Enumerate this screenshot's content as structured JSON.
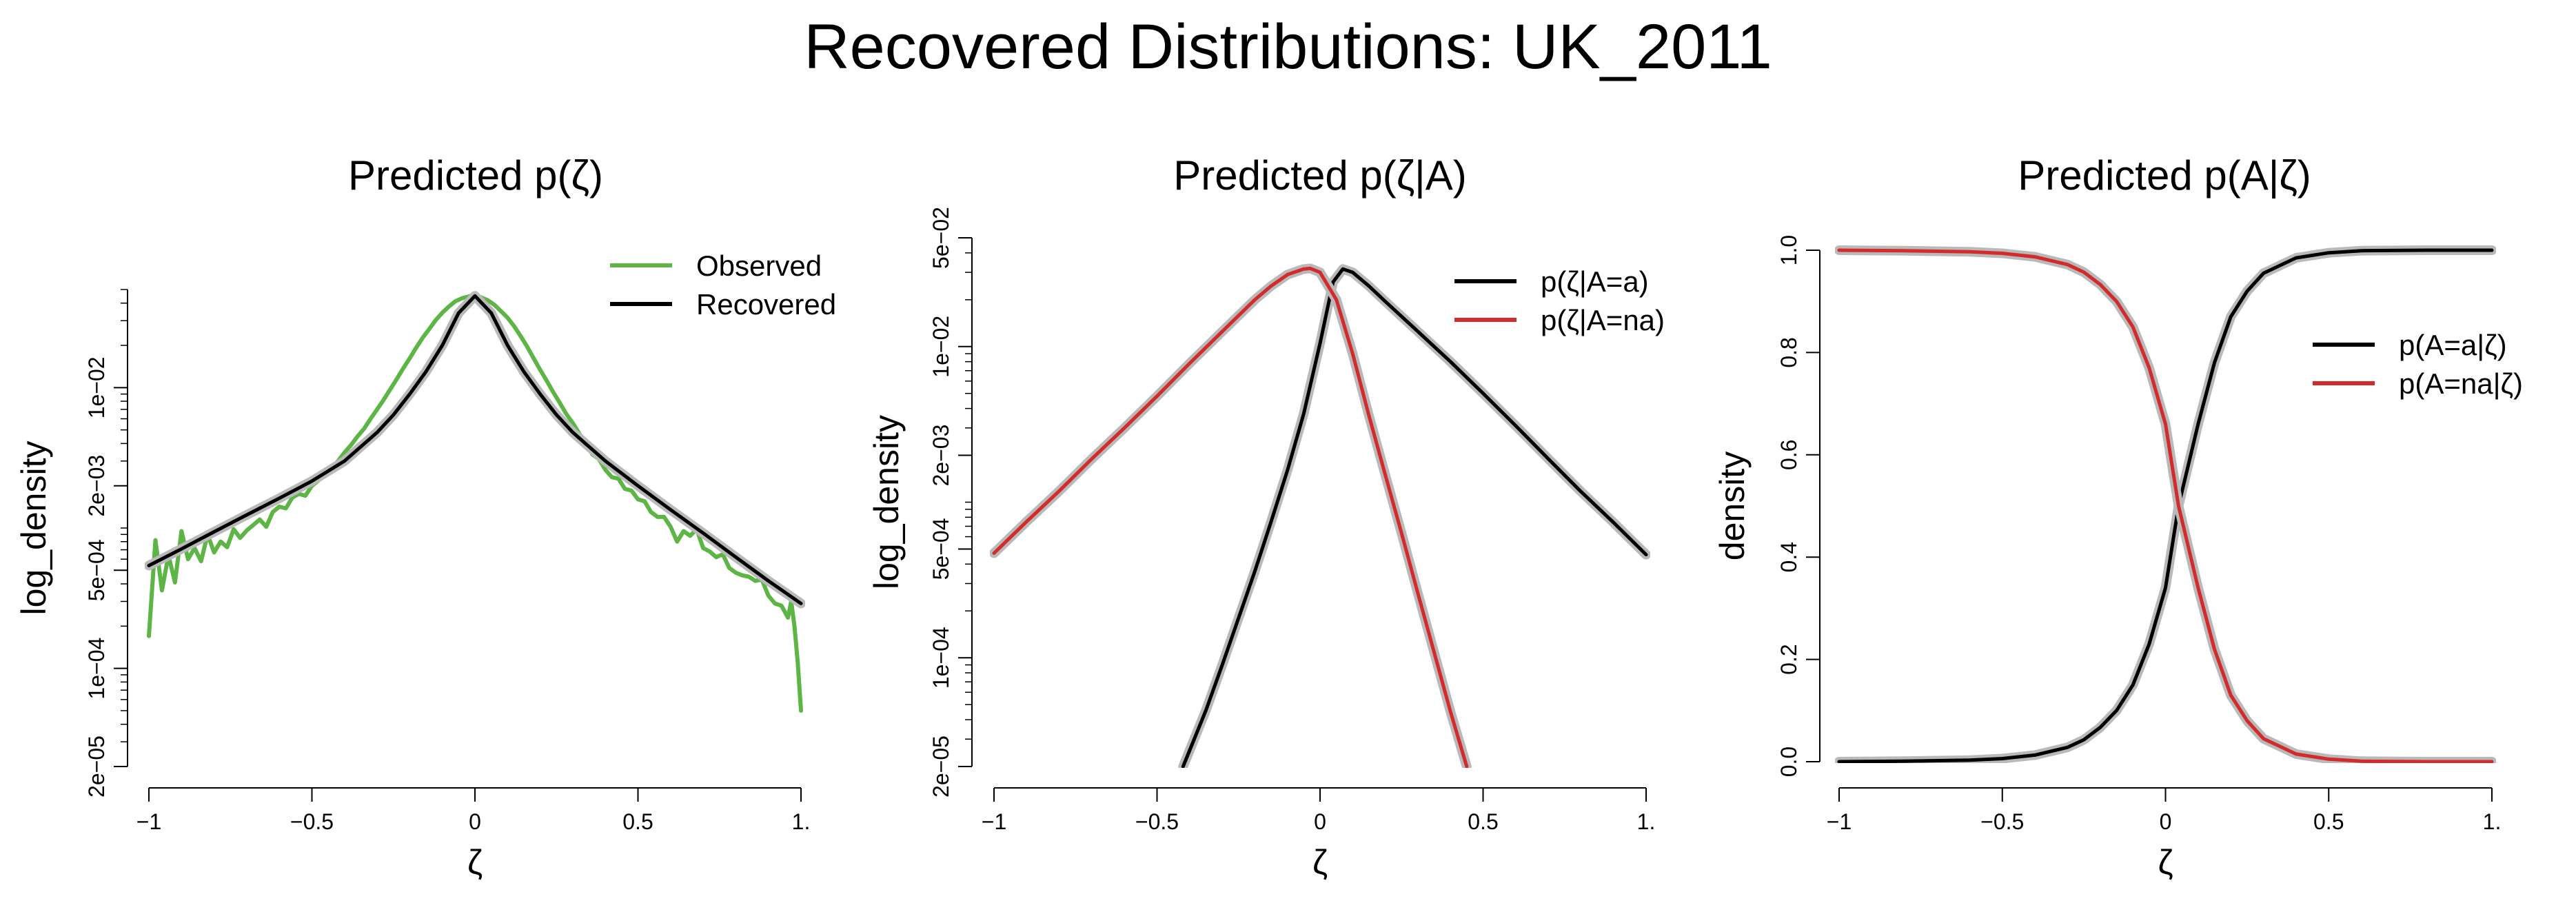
{
  "figure": {
    "title": "Recovered Distributions: UK_2011"
  },
  "colors": {
    "observed": "#5cb545",
    "black": "#000000",
    "red": "#d32b2b",
    "band": "#b9b9b9"
  },
  "chart_data": [
    {
      "type": "line",
      "title": "Predicted p(ζ)",
      "xlabel": "ζ",
      "ylabel": "log_density",
      "yscale": "log",
      "xlim": [
        -1,
        1
      ],
      "ylim": [
        2e-05,
        0.05
      ],
      "x_ticks": [
        -1,
        -0.5,
        0,
        0.5,
        1
      ],
      "x_tick_labels": [
        "−1",
        "−0.5",
        "0",
        "0.5",
        "1."
      ],
      "y_ticks": [
        2e-05,
        0.0001,
        0.0005,
        0.002,
        0.01
      ],
      "y_tick_labels": [
        "2e−05",
        "1e−04",
        "5e−04",
        "2e−03",
        "1e−02"
      ],
      "legend": [
        {
          "label": "Observed",
          "color": "#5cb545"
        },
        {
          "label": "Recovered",
          "color": "#000000"
        }
      ],
      "series": [
        {
          "name": "Observed",
          "color": "#5cb545",
          "x": [
            -1.0,
            -0.98,
            -0.96,
            -0.94,
            -0.92,
            -0.9,
            -0.88,
            -0.86,
            -0.84,
            -0.82,
            -0.8,
            -0.78,
            -0.76,
            -0.74,
            -0.72,
            -0.7,
            -0.68,
            -0.66,
            -0.64,
            -0.62,
            -0.6,
            -0.58,
            -0.56,
            -0.54,
            -0.52,
            -0.5,
            -0.48,
            -0.46,
            -0.44,
            -0.42,
            -0.4,
            -0.38,
            -0.36,
            -0.34,
            -0.32,
            -0.3,
            -0.28,
            -0.26,
            -0.24,
            -0.22,
            -0.2,
            -0.18,
            -0.16,
            -0.14,
            -0.12,
            -0.1,
            -0.08,
            -0.06,
            -0.04,
            -0.02,
            0.0,
            0.02,
            0.04,
            0.06,
            0.08,
            0.1,
            0.12,
            0.14,
            0.16,
            0.18,
            0.2,
            0.22,
            0.24,
            0.26,
            0.28,
            0.3,
            0.32,
            0.34,
            0.36,
            0.38,
            0.4,
            0.42,
            0.44,
            0.46,
            0.48,
            0.5,
            0.52,
            0.54,
            0.56,
            0.58,
            0.6,
            0.62,
            0.64,
            0.66,
            0.68,
            0.7,
            0.72,
            0.74,
            0.76,
            0.78,
            0.8,
            0.82,
            0.84,
            0.86,
            0.88,
            0.9,
            0.92,
            0.94,
            0.96,
            0.97,
            0.98,
            0.99,
            1.0
          ],
          "y": [
            0.00017,
            0.00082,
            0.00036,
            0.00064,
            0.00041,
            0.00095,
            0.0006,
            0.00072,
            0.00058,
            0.0009,
            0.00067,
            0.0008,
            0.00073,
            0.00098,
            0.00085,
            0.00096,
            0.00105,
            0.00115,
            0.00102,
            0.0013,
            0.00142,
            0.00138,
            0.00165,
            0.00175,
            0.0017,
            0.002,
            0.00218,
            0.0025,
            0.00262,
            0.003,
            0.00345,
            0.0039,
            0.0045,
            0.0051,
            0.006,
            0.007,
            0.0082,
            0.0097,
            0.0115,
            0.0137,
            0.0162,
            0.0193,
            0.0227,
            0.0262,
            0.0303,
            0.0342,
            0.0378,
            0.0412,
            0.0433,
            0.0445,
            0.046,
            0.0438,
            0.0418,
            0.0388,
            0.035,
            0.0315,
            0.0274,
            0.0233,
            0.0196,
            0.0162,
            0.0134,
            0.0112,
            0.0093,
            0.0078,
            0.0065,
            0.0056,
            0.0047,
            0.004,
            0.00335,
            0.0031,
            0.0026,
            0.0023,
            0.00225,
            0.0019,
            0.00185,
            0.0016,
            0.00155,
            0.0013,
            0.0012,
            0.0012,
            0.00102,
            0.0008,
            0.00095,
            0.00088,
            0.00098,
            0.00072,
            0.00068,
            0.00062,
            0.00065,
            0.00052,
            0.00048,
            0.00046,
            0.00045,
            0.00042,
            0.00043,
            0.00033,
            0.00029,
            0.00028,
            0.00023,
            0.0003,
            0.0002,
            0.00011,
            5e-05
          ]
        },
        {
          "name": "Recovered",
          "color": "#000000",
          "x": [
            -1.0,
            -0.9,
            -0.8,
            -0.7,
            -0.6,
            -0.5,
            -0.4,
            -0.3,
            -0.25,
            -0.2,
            -0.15,
            -0.1,
            -0.05,
            0.0,
            0.05,
            0.1,
            0.15,
            0.2,
            0.25,
            0.3,
            0.4,
            0.5,
            0.6,
            0.7,
            0.8,
            0.9,
            1.0
          ],
          "y": [
            0.00054,
            0.00071,
            0.00094,
            0.00124,
            0.00163,
            0.00216,
            0.003,
            0.0048,
            0.0064,
            0.009,
            0.013,
            0.02,
            0.034,
            0.045,
            0.034,
            0.02,
            0.013,
            0.009,
            0.0064,
            0.0048,
            0.003,
            0.002,
            0.00135,
            0.00092,
            0.00062,
            0.00042,
            0.00029
          ]
        }
      ]
    },
    {
      "type": "line",
      "title": "Predicted p(ζ|A)",
      "xlabel": "ζ",
      "ylabel": "log_density",
      "yscale": "log",
      "xlim": [
        -1,
        1
      ],
      "ylim": [
        2e-05,
        0.05
      ],
      "x_ticks": [
        -1,
        -0.5,
        0,
        0.5,
        1
      ],
      "x_tick_labels": [
        "−1",
        "−0.5",
        "0",
        "0.5",
        "1."
      ],
      "y_ticks": [
        2e-05,
        0.0001,
        0.0005,
        0.002,
        0.01,
        0.05
      ],
      "y_tick_labels": [
        "2e−05",
        "1e−04",
        "5e−04",
        "2e−03",
        "1e−02",
        "5e−02"
      ],
      "legend": [
        {
          "label": "p(ζ|A=a)",
          "color": "#000000"
        },
        {
          "label": "p(ζ|A=na)",
          "color": "#d32b2b"
        }
      ],
      "series": [
        {
          "name": "p(ζ|A=a)",
          "color": "#000000",
          "x": [
            -0.42,
            -0.35,
            -0.3,
            -0.25,
            -0.2,
            -0.15,
            -0.1,
            -0.05,
            0.0,
            0.04,
            0.07,
            0.1,
            0.15,
            0.2,
            0.3,
            0.4,
            0.5,
            0.6,
            0.7,
            0.8,
            0.9,
            1.0
          ],
          "y": [
            2e-05,
            4.6e-05,
            9e-05,
            0.00018,
            0.00036,
            0.00075,
            0.0016,
            0.0037,
            0.0105,
            0.026,
            0.0315,
            0.03,
            0.0245,
            0.0195,
            0.0125,
            0.008,
            0.005,
            0.0031,
            0.0019,
            0.00117,
            0.00074,
            0.00046
          ]
        },
        {
          "name": "p(ζ|A=na)",
          "color": "#d32b2b",
          "x": [
            -1.0,
            -0.9,
            -0.8,
            -0.7,
            -0.6,
            -0.5,
            -0.4,
            -0.3,
            -0.2,
            -0.15,
            -0.1,
            -0.05,
            -0.03,
            0.0,
            0.05,
            0.1,
            0.15,
            0.2,
            0.25,
            0.3,
            0.35,
            0.4,
            0.45
          ],
          "y": [
            0.00047,
            0.00075,
            0.00118,
            0.0019,
            0.003,
            0.0048,
            0.0078,
            0.0125,
            0.02,
            0.0245,
            0.029,
            0.0315,
            0.0318,
            0.03,
            0.02,
            0.009,
            0.0036,
            0.0015,
            0.00063,
            0.00026,
            0.000108,
            4.5e-05,
            2e-05
          ]
        }
      ]
    },
    {
      "type": "line",
      "title": "Predicted p(A|ζ)",
      "xlabel": "ζ",
      "ylabel": "density",
      "yscale": "linear",
      "xlim": [
        -1,
        1
      ],
      "ylim": [
        0,
        1
      ],
      "x_ticks": [
        -1,
        -0.5,
        0,
        0.5,
        1
      ],
      "x_tick_labels": [
        "−1",
        "−0.5",
        "0",
        "0.5",
        "1."
      ],
      "y_ticks": [
        0,
        0.2,
        0.4,
        0.6,
        0.8,
        1
      ],
      "y_tick_labels": [
        "0.0",
        "0.2",
        "0.4",
        "0.6",
        "0.8",
        "1.0"
      ],
      "legend": [
        {
          "label": "p(A=a|ζ)",
          "color": "#000000"
        },
        {
          "label": "p(A=na|ζ)",
          "color": "#d32b2b"
        }
      ],
      "series": [
        {
          "name": "p(A=a|ζ)",
          "color": "#000000",
          "x": [
            -1.0,
            -0.8,
            -0.6,
            -0.5,
            -0.4,
            -0.3,
            -0.25,
            -0.2,
            -0.15,
            -0.1,
            -0.05,
            0.0,
            0.04,
            0.1,
            0.15,
            0.2,
            0.25,
            0.3,
            0.4,
            0.5,
            0.6,
            0.8,
            1.0
          ],
          "y": [
            0.0,
            0.001,
            0.003,
            0.006,
            0.013,
            0.028,
            0.043,
            0.067,
            0.1,
            0.15,
            0.23,
            0.34,
            0.5,
            0.66,
            0.78,
            0.87,
            0.92,
            0.955,
            0.985,
            0.995,
            0.999,
            1.0,
            1.0
          ]
        },
        {
          "name": "p(A=na|ζ)",
          "color": "#d32b2b",
          "x": [
            -1.0,
            -0.8,
            -0.6,
            -0.5,
            -0.4,
            -0.3,
            -0.25,
            -0.2,
            -0.15,
            -0.1,
            -0.05,
            0.0,
            0.04,
            0.1,
            0.15,
            0.2,
            0.25,
            0.3,
            0.4,
            0.5,
            0.6,
            0.8,
            1.0
          ],
          "y": [
            1.0,
            0.999,
            0.997,
            0.994,
            0.987,
            0.972,
            0.957,
            0.933,
            0.9,
            0.85,
            0.77,
            0.66,
            0.5,
            0.34,
            0.22,
            0.13,
            0.08,
            0.045,
            0.015,
            0.005,
            0.001,
            0.0,
            0.0
          ]
        }
      ]
    }
  ]
}
